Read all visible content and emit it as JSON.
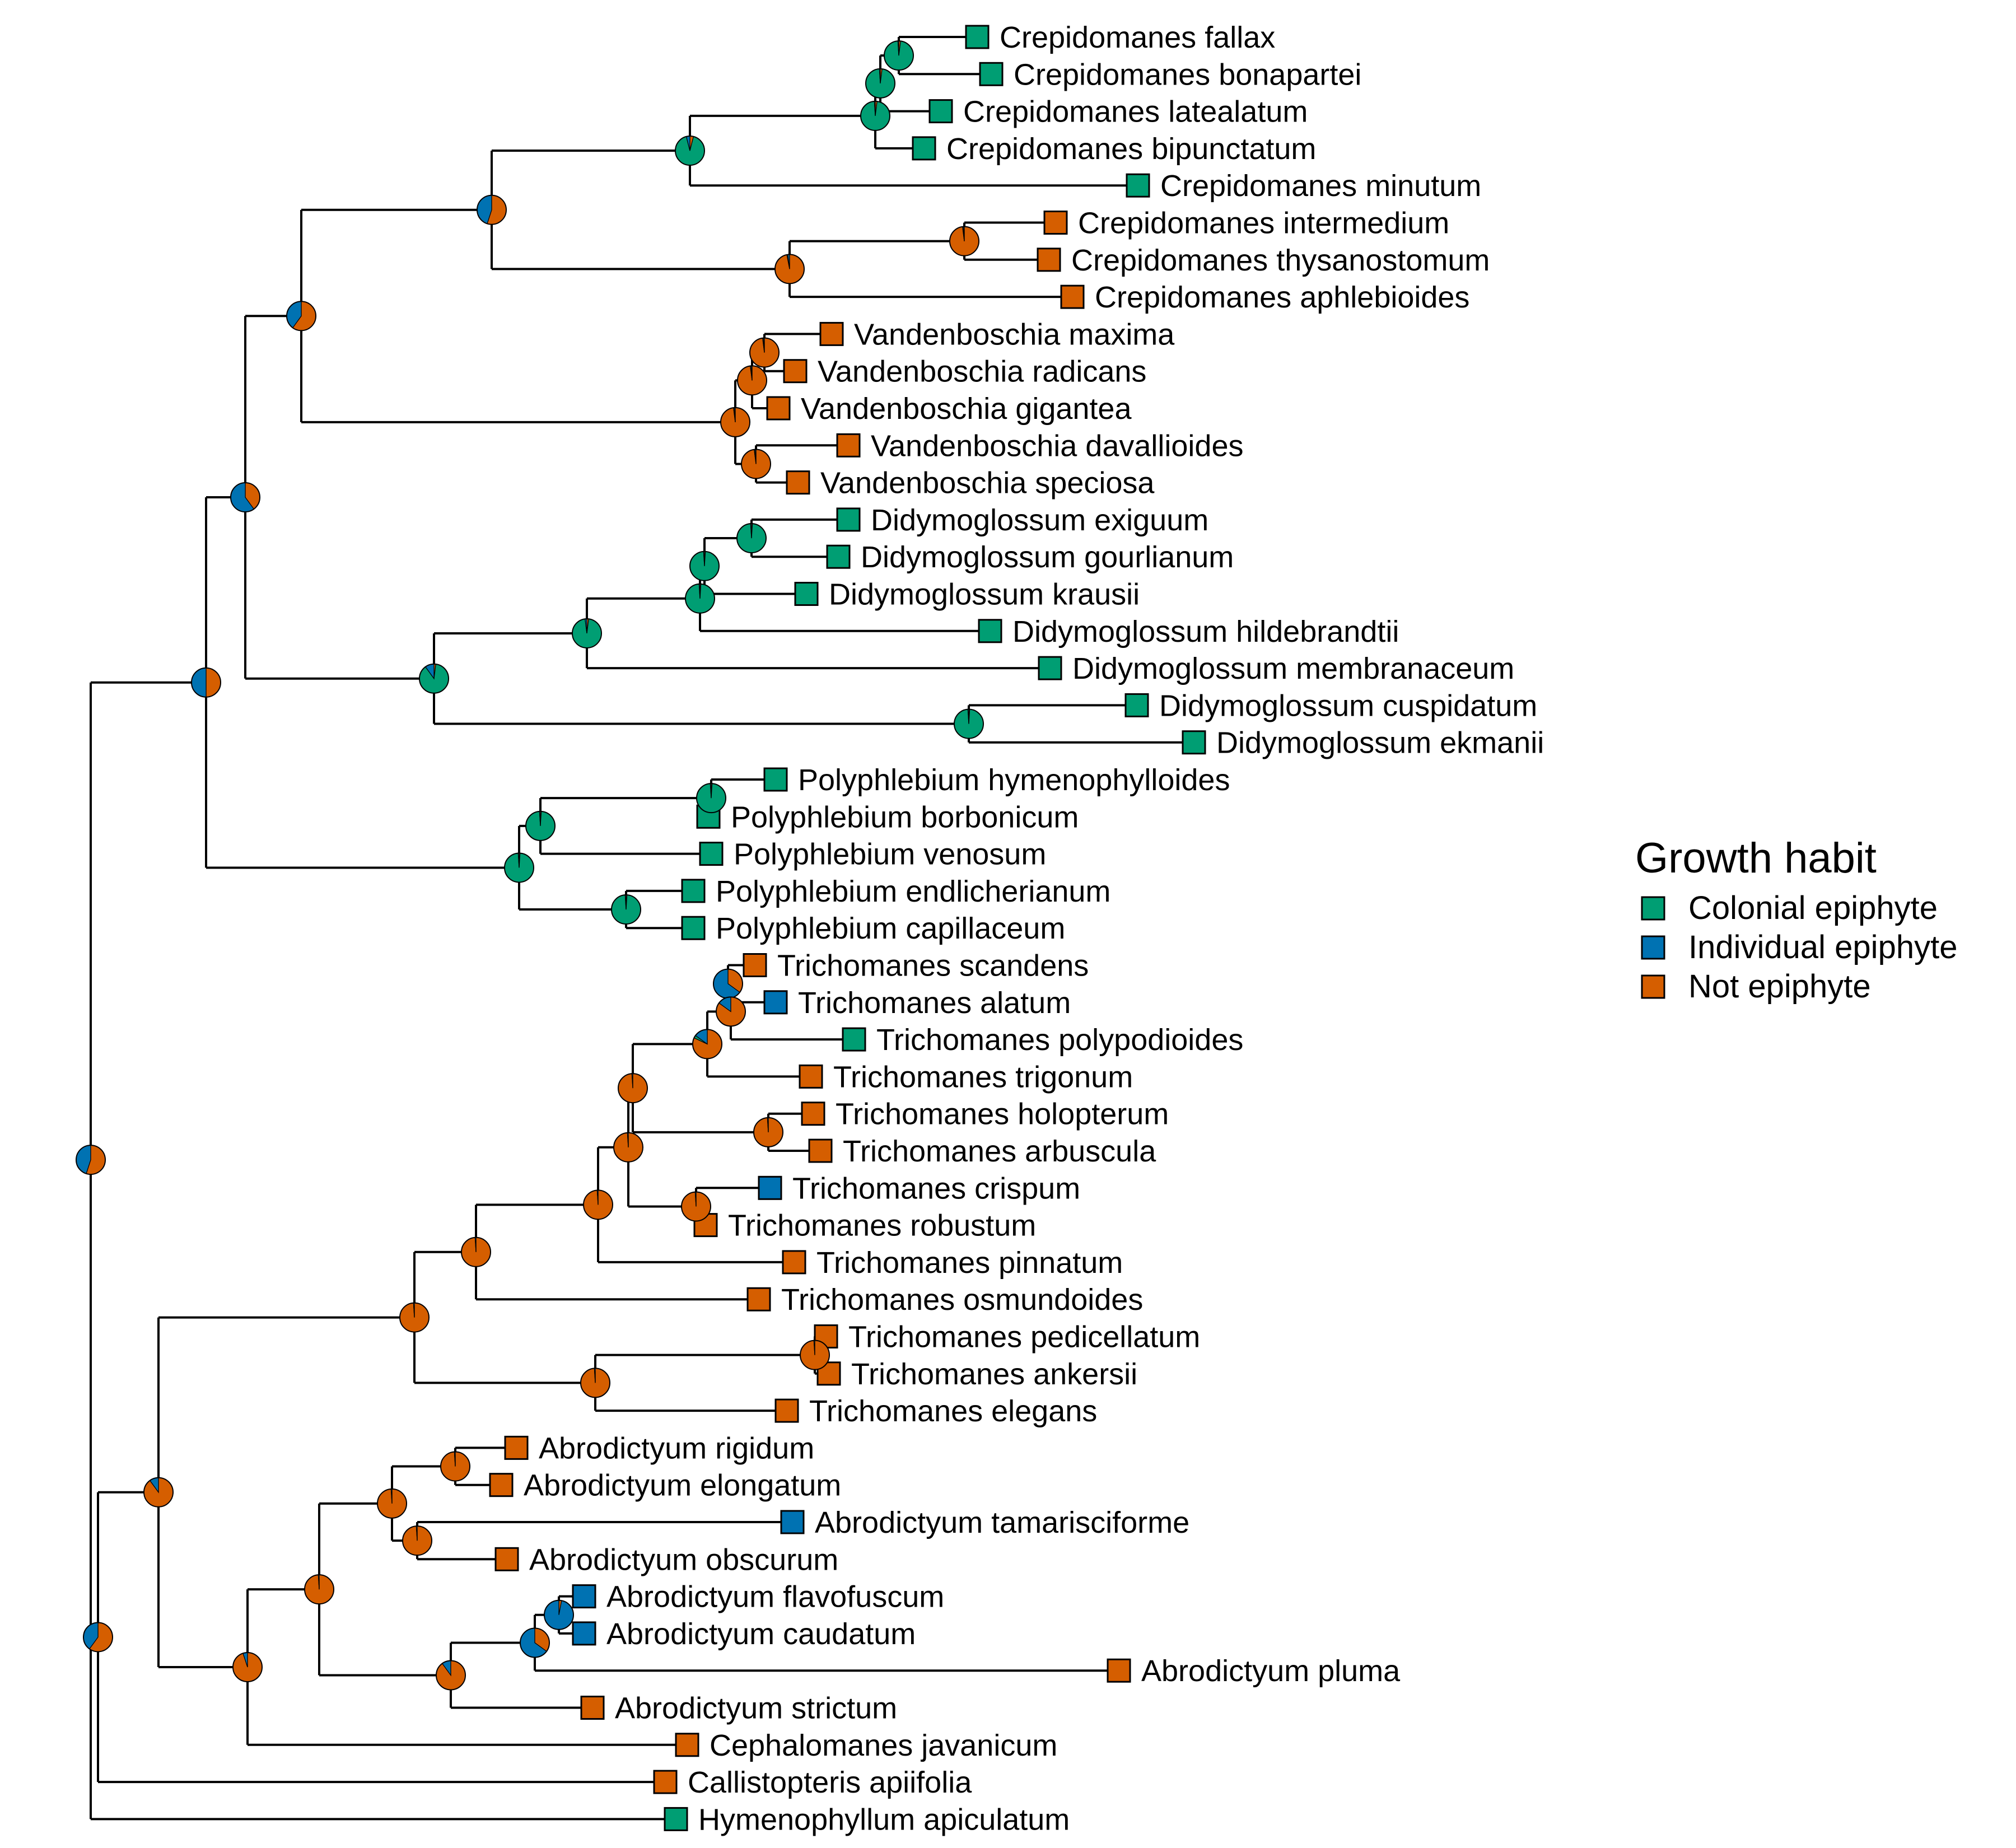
{
  "legend": {
    "title": "Growth habit",
    "items": [
      {
        "label": "Colonial epiphyte",
        "color": "#009E73"
      },
      {
        "label": "Individual epiphyte",
        "color": "#0072B2"
      },
      {
        "label": "Not epiphyte",
        "color": "#D55E00"
      }
    ]
  },
  "tips": [
    {
      "name": "Crepidomanes fallax",
      "state": "Colonial epiphyte"
    },
    {
      "name": "Crepidomanes bonapartei",
      "state": "Colonial epiphyte"
    },
    {
      "name": "Crepidomanes latealatum",
      "state": "Colonial epiphyte"
    },
    {
      "name": "Crepidomanes bipunctatum",
      "state": "Colonial epiphyte"
    },
    {
      "name": "Crepidomanes minutum",
      "state": "Colonial epiphyte"
    },
    {
      "name": "Crepidomanes intermedium",
      "state": "Not epiphyte"
    },
    {
      "name": "Crepidomanes thysanostomum",
      "state": "Not epiphyte"
    },
    {
      "name": "Crepidomanes aphlebioides",
      "state": "Not epiphyte"
    },
    {
      "name": "Vandenboschia maxima",
      "state": "Not epiphyte"
    },
    {
      "name": "Vandenboschia radicans",
      "state": "Not epiphyte"
    },
    {
      "name": "Vandenboschia gigantea",
      "state": "Not epiphyte"
    },
    {
      "name": "Vandenboschia davallioides",
      "state": "Not epiphyte"
    },
    {
      "name": "Vandenboschia speciosa",
      "state": "Not epiphyte"
    },
    {
      "name": "Didymoglossum exiguum",
      "state": "Colonial epiphyte"
    },
    {
      "name": "Didymoglossum gourlianum",
      "state": "Colonial epiphyte"
    },
    {
      "name": "Didymoglossum krausii",
      "state": "Colonial epiphyte"
    },
    {
      "name": "Didymoglossum hildebrandtii",
      "state": "Colonial epiphyte"
    },
    {
      "name": "Didymoglossum membranaceum",
      "state": "Colonial epiphyte"
    },
    {
      "name": "Didymoglossum cuspidatum",
      "state": "Colonial epiphyte"
    },
    {
      "name": "Didymoglossum ekmanii",
      "state": "Colonial epiphyte"
    },
    {
      "name": "Polyphlebium hymenophylloides",
      "state": "Colonial epiphyte"
    },
    {
      "name": "Polyphlebium borbonicum",
      "state": "Colonial epiphyte"
    },
    {
      "name": "Polyphlebium venosum",
      "state": "Colonial epiphyte"
    },
    {
      "name": "Polyphlebium endlicherianum",
      "state": "Colonial epiphyte"
    },
    {
      "name": "Polyphlebium capillaceum",
      "state": "Colonial epiphyte"
    },
    {
      "name": "Trichomanes scandens",
      "state": "Not epiphyte"
    },
    {
      "name": "Trichomanes alatum",
      "state": "Individual epiphyte"
    },
    {
      "name": "Trichomanes polypodioides",
      "state": "Colonial epiphyte"
    },
    {
      "name": "Trichomanes trigonum",
      "state": "Not epiphyte"
    },
    {
      "name": "Trichomanes holopterum",
      "state": "Not epiphyte"
    },
    {
      "name": "Trichomanes arbuscula",
      "state": "Not epiphyte"
    },
    {
      "name": "Trichomanes crispum",
      "state": "Individual epiphyte"
    },
    {
      "name": "Trichomanes robustum",
      "state": "Not epiphyte"
    },
    {
      "name": "Trichomanes pinnatum",
      "state": "Not epiphyte"
    },
    {
      "name": "Trichomanes osmundoides",
      "state": "Not epiphyte"
    },
    {
      "name": "Trichomanes pedicellatum",
      "state": "Not epiphyte"
    },
    {
      "name": "Trichomanes ankersii",
      "state": "Not epiphyte"
    },
    {
      "name": "Trichomanes elegans",
      "state": "Not epiphyte"
    },
    {
      "name": "Abrodictyum rigidum",
      "state": "Not epiphyte"
    },
    {
      "name": "Abrodictyum elongatum",
      "state": "Not epiphyte"
    },
    {
      "name": "Abrodictyum tamarisciforme",
      "state": "Individual epiphyte"
    },
    {
      "name": "Abrodictyum obscurum",
      "state": "Not epiphyte"
    },
    {
      "name": "Abrodictyum flavofuscum",
      "state": "Individual epiphyte"
    },
    {
      "name": "Abrodictyum caudatum",
      "state": "Individual epiphyte"
    },
    {
      "name": "Abrodictyum pluma",
      "state": "Not epiphyte"
    },
    {
      "name": "Abrodictyum strictum",
      "state": "Not epiphyte"
    },
    {
      "name": "Cephalomanes javanicum",
      "state": "Not epiphyte"
    },
    {
      "name": "Callistopteris apiifolia",
      "state": "Not epiphyte"
    },
    {
      "name": "Hymenophyllum apiculatum",
      "state": "Colonial epiphyte"
    }
  ],
  "node_pies": [
    {
      "node": "crep-fallax-bonapartei",
      "colonial": 0.97,
      "individual": 0.01,
      "not": 0.02
    },
    {
      "node": "crep-four",
      "colonial": 0.97,
      "individual": 0.01,
      "not": 0.02
    },
    {
      "node": "crep-four-inner",
      "colonial": 0.97,
      "individual": 0.01,
      "not": 0.02
    },
    {
      "node": "crep-colonial-clade",
      "colonial": 0.92,
      "individual": 0.04,
      "not": 0.04
    },
    {
      "node": "crep-intermedium-thysanostomum",
      "colonial": 0.01,
      "individual": 0.01,
      "not": 0.98
    },
    {
      "node": "crep-not-clade",
      "colonial": 0.01,
      "individual": 0.02,
      "not": 0.97
    },
    {
      "node": "crepidomanes",
      "colonial": 0.0,
      "individual": 0.45,
      "not": 0.55
    },
    {
      "node": "vand-maxima-radicans",
      "colonial": 0.01,
      "individual": 0.01,
      "not": 0.98
    },
    {
      "node": "vand-three",
      "colonial": 0.01,
      "individual": 0.01,
      "not": 0.98
    },
    {
      "node": "vandenboschia",
      "colonial": 0.01,
      "individual": 0.01,
      "not": 0.98
    },
    {
      "node": "vand-davallioides-speciosa",
      "colonial": 0.01,
      "individual": 0.01,
      "not": 0.98
    },
    {
      "node": "crep-vand",
      "colonial": 0.0,
      "individual": 0.4,
      "not": 0.6
    },
    {
      "node": "didy-exiguum-gourlianum",
      "colonial": 0.98,
      "individual": 0.01,
      "not": 0.01
    },
    {
      "node": "didy-three",
      "colonial": 0.98,
      "individual": 0.01,
      "not": 0.01
    },
    {
      "node": "didy-four",
      "colonial": 0.98,
      "individual": 0.01,
      "not": 0.01
    },
    {
      "node": "didy-five",
      "colonial": 0.96,
      "individual": 0.02,
      "not": 0.02
    },
    {
      "node": "didymoglossum",
      "colonial": 0.88,
      "individual": 0.1,
      "not": 0.02
    },
    {
      "node": "didy-cuspidatum-ekmanii",
      "colonial": 0.98,
      "individual": 0.01,
      "not": 0.01
    },
    {
      "node": "crep-vand-didy",
      "colonial": 0.0,
      "individual": 0.6,
      "not": 0.4
    },
    {
      "node": "poly-hymenophylloides-borbonicum",
      "colonial": 0.98,
      "individual": 0.01,
      "not": 0.01
    },
    {
      "node": "poly-three",
      "colonial": 0.98,
      "individual": 0.01,
      "not": 0.01
    },
    {
      "node": "poly-venosum-endlicherianum",
      "colonial": 0.98,
      "individual": 0.01,
      "not": 0.01
    },
    {
      "node": "polyphlebium",
      "colonial": 0.98,
      "individual": 0.01,
      "not": 0.01
    },
    {
      "node": "trichomanoid-epiphytes",
      "colonial": 0.0,
      "individual": 0.5,
      "not": 0.5
    },
    {
      "node": "tric-scandens-alatum",
      "colonial": 0.0,
      "individual": 0.65,
      "not": 0.35
    },
    {
      "node": "tric-three",
      "colonial": 0.0,
      "individual": 0.15,
      "not": 0.85
    },
    {
      "node": "tric-four",
      "colonial": 0.03,
      "individual": 0.15,
      "not": 0.82
    },
    {
      "node": "tric-five",
      "colonial": 0.0,
      "individual": 0.01,
      "not": 0.99
    },
    {
      "node": "tric-holopterum-arbuscula",
      "colonial": 0.0,
      "individual": 0.01,
      "not": 0.99
    },
    {
      "node": "tric-crispum-robustum",
      "colonial": 0.0,
      "individual": 0.01,
      "not": 0.99
    },
    {
      "node": "tric-core",
      "colonial": 0.0,
      "individual": 0.01,
      "not": 0.99
    },
    {
      "node": "tric-pinnatum",
      "colonial": 0.0,
      "individual": 0.01,
      "not": 0.99
    },
    {
      "node": "tric-osmundoides",
      "colonial": 0.0,
      "individual": 0.01,
      "not": 0.99
    },
    {
      "node": "tric-pedicellatum-ankersii",
      "colonial": 0.0,
      "individual": 0.01,
      "not": 0.99
    },
    {
      "node": "tric-elegans",
      "colonial": 0.0,
      "individual": 0.01,
      "not": 0.99
    },
    {
      "node": "trichomanes",
      "colonial": 0.0,
      "individual": 0.01,
      "not": 0.99
    },
    {
      "node": "abro-rigidum-elongatum",
      "colonial": 0.0,
      "individual": 0.01,
      "not": 0.99
    },
    {
      "node": "abro-tamarisciforme-obscurum",
      "colonial": 0.0,
      "individual": 0.01,
      "not": 0.99
    },
    {
      "node": "abro-four",
      "colonial": 0.0,
      "individual": 0.01,
      "not": 0.99
    },
    {
      "node": "abro-flavofuscum-caudatum",
      "colonial": 0.0,
      "individual": 0.97,
      "not": 0.03
    },
    {
      "node": "abro-three",
      "colonial": 0.0,
      "individual": 0.65,
      "not": 0.35
    },
    {
      "node": "abro-four-b",
      "colonial": 0.0,
      "individual": 0.1,
      "not": 0.9
    },
    {
      "node": "abrodictyum",
      "colonial": 0.0,
      "individual": 0.01,
      "not": 0.99
    },
    {
      "node": "abro-ceph",
      "colonial": 0.0,
      "individual": 0.05,
      "not": 0.95
    },
    {
      "node": "trichomanoid-terrestrial",
      "colonial": 0.0,
      "individual": 0.1,
      "not": 0.9
    },
    {
      "node": "with-callistopteris",
      "colonial": 0.0,
      "individual": 0.4,
      "not": 0.6
    },
    {
      "node": "trichomanoids",
      "colonial": 0.0,
      "individual": 0.45,
      "not": 0.55
    }
  ]
}
